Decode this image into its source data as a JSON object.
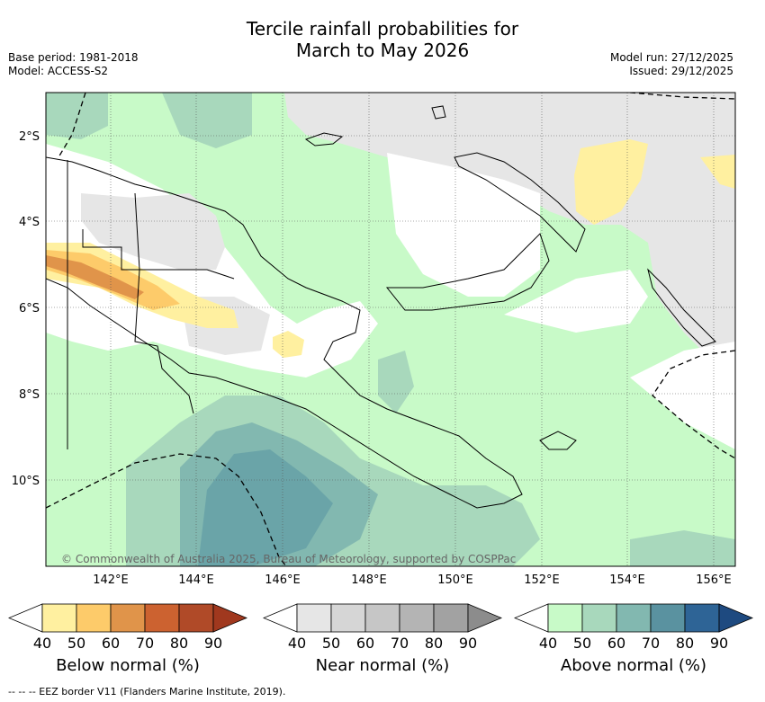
{
  "title_line1": "Tercile rainfall probabilities for",
  "title_line2": "March to May 2026",
  "meta_left": {
    "base_period": "Base period: 1981-2018",
    "model": "Model: ACCESS-S2"
  },
  "meta_right": {
    "model_run": "Model run: 27/12/2025",
    "issued": "Issued: 29/12/2025"
  },
  "copyright": "© Commonwealth of Australia 2025, Bureau of Meteorology, supported by COSPPac",
  "lat_labels": [
    "2°S",
    "4°S",
    "6°S",
    "8°S",
    "10°S"
  ],
  "lon_labels": [
    "142°E",
    "144°E",
    "146°E",
    "148°E",
    "150°E",
    "152°E",
    "154°E",
    "156°E"
  ],
  "colorbars": [
    {
      "label": "Below normal (%)",
      "ticks": [
        "40",
        "50",
        "60",
        "70",
        "80",
        "90"
      ],
      "colors": [
        "#fff0a0",
        "#fdcb6a",
        "#e0944a",
        "#cc6230",
        "#b04a28",
        "#a0381e"
      ]
    },
    {
      "label": "Near normal (%)",
      "ticks": [
        "40",
        "50",
        "60",
        "70",
        "80",
        "90"
      ],
      "colors": [
        "#e6e6e6",
        "#d6d6d6",
        "#c6c6c6",
        "#b4b4b4",
        "#a2a2a2",
        "#8c8c8c"
      ]
    },
    {
      "label": "Above normal (%)",
      "ticks": [
        "40",
        "50",
        "60",
        "70",
        "80",
        "90"
      ],
      "colors": [
        "#c8fac8",
        "#a8d8bc",
        "#82b8b0",
        "#5a92a0",
        "#2e6496",
        "#1e4a80"
      ]
    }
  ],
  "footnote": "--  --  -- EEZ border V11 (Flanders Marine Institute, 2019)."
}
